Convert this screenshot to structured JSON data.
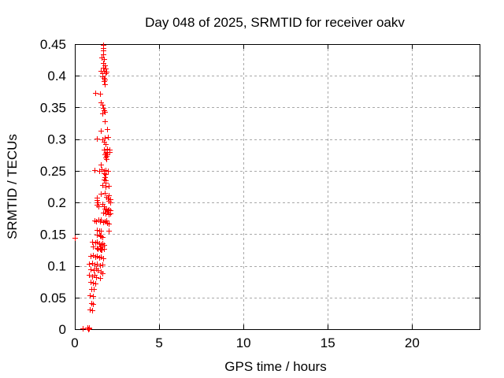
{
  "window": {
    "background": "#ffffff"
  },
  "colors": {
    "axis": "#000000",
    "grid": "#a8a8a8",
    "text": "#000000",
    "marker": "#ff0000"
  },
  "chart_data": {
    "type": "scatter",
    "title": "Day 048 of 2025, SRMTID for receiver oakv",
    "xlabel": "GPS time / hours",
    "ylabel": "SRMTID / TECUs",
    "xlim": [
      0,
      24
    ],
    "ylim": [
      0,
      0.45
    ],
    "xticks": {
      "values": [
        0,
        5,
        10,
        15,
        20
      ],
      "labels": [
        "0",
        "5",
        "10",
        "15",
        "20"
      ]
    },
    "yticks": {
      "values": [
        0,
        0.05,
        0.1,
        0.15,
        0.2,
        0.25,
        0.3,
        0.35,
        0.4,
        0.45
      ],
      "labels": [
        "0",
        "0.05",
        "0.1",
        "0.15",
        "0.2",
        "0.25",
        "0.3",
        "0.35",
        "0.4",
        "0.45"
      ]
    },
    "grid": "dashed",
    "legend_position": "none",
    "marker": {
      "shape": "plus",
      "color": "#ff0000",
      "size": 7
    },
    "series": [
      {
        "name": "SRMTID",
        "points": [
          [
            0.47,
            0.001
          ],
          [
            0.75,
            0.002
          ],
          [
            0.79,
            0.0
          ],
          [
            0.82,
            0.003
          ],
          [
            0.84,
            0.001
          ],
          [
            0.89,
            0.031
          ],
          [
            1.03,
            0.03
          ],
          [
            0.98,
            0.041
          ],
          [
            1.07,
            0.04
          ],
          [
            0.89,
            0.053
          ],
          [
            1.07,
            0.052
          ],
          [
            0.98,
            0.063
          ],
          [
            1.12,
            0.063
          ],
          [
            0.93,
            0.075
          ],
          [
            1.07,
            0.073
          ],
          [
            1.21,
            0.072
          ],
          [
            0.84,
            0.086
          ],
          [
            1.03,
            0.083
          ],
          [
            1.17,
            0.086
          ],
          [
            1.26,
            0.082
          ],
          [
            1.5,
            0.081
          ],
          [
            0.93,
            0.094
          ],
          [
            1.12,
            0.093
          ],
          [
            1.26,
            0.096
          ],
          [
            1.36,
            0.093
          ],
          [
            1.54,
            0.091
          ],
          [
            1.64,
            0.088
          ],
          [
            0.84,
            0.103
          ],
          [
            1.03,
            0.104
          ],
          [
            1.17,
            0.102
          ],
          [
            1.31,
            0.103
          ],
          [
            1.5,
            0.101
          ],
          [
            1.64,
            0.102
          ],
          [
            0.93,
            0.116
          ],
          [
            1.07,
            0.117
          ],
          [
            1.21,
            0.114
          ],
          [
            1.31,
            0.116
          ],
          [
            1.45,
            0.113
          ],
          [
            1.54,
            0.114
          ],
          [
            1.68,
            0.112
          ],
          [
            1.07,
            0.131
          ],
          [
            1.5,
            0.131
          ],
          [
            1.64,
            0.131
          ],
          [
            1.36,
            0.127
          ],
          [
            1.54,
            0.126
          ],
          [
            1.31,
            0.128
          ],
          [
            1.5,
            0.127
          ],
          [
            1.59,
            0.126
          ],
          [
            1.73,
            0.127
          ],
          [
            1.03,
            0.138
          ],
          [
            1.21,
            0.137
          ],
          [
            1.31,
            0.138
          ],
          [
            1.45,
            0.136
          ],
          [
            1.54,
            0.134
          ],
          [
            1.64,
            0.136
          ],
          [
            1.73,
            0.133
          ],
          [
            0.02,
            0.144
          ],
          [
            1.31,
            0.149
          ],
          [
            1.5,
            0.148
          ],
          [
            1.54,
            0.147
          ],
          [
            1.64,
            0.145
          ],
          [
            1.31,
            0.157
          ],
          [
            1.45,
            0.155
          ],
          [
            1.54,
            0.155
          ],
          [
            2.01,
            0.155
          ],
          [
            1.17,
            0.172
          ],
          [
            1.26,
            0.17
          ],
          [
            1.4,
            0.173
          ],
          [
            1.5,
            0.17
          ],
          [
            1.54,
            0.173
          ],
          [
            1.68,
            0.169
          ],
          [
            1.78,
            0.17
          ],
          [
            1.87,
            0.172
          ],
          [
            1.92,
            0.168
          ],
          [
            2.01,
            0.167
          ],
          [
            1.68,
            0.184
          ],
          [
            1.82,
            0.183
          ],
          [
            1.92,
            0.185
          ],
          [
            2.01,
            0.182
          ],
          [
            2.1,
            0.183
          ],
          [
            1.78,
            0.19
          ],
          [
            1.87,
            0.189
          ],
          [
            1.96,
            0.188
          ],
          [
            2.01,
            0.189
          ],
          [
            2.1,
            0.188
          ],
          [
            1.64,
            0.198
          ],
          [
            1.73,
            0.194
          ],
          [
            1.31,
            0.208
          ],
          [
            1.31,
            0.204
          ],
          [
            1.36,
            0.2
          ],
          [
            1.31,
            0.196
          ],
          [
            1.4,
            0.194
          ],
          [
            1.87,
            0.209
          ],
          [
            1.96,
            0.206
          ],
          [
            2.1,
            0.205
          ],
          [
            2.01,
            0.203
          ],
          [
            2.1,
            0.2
          ],
          [
            1.54,
            0.214
          ],
          [
            1.78,
            0.215
          ],
          [
            2.01,
            0.211
          ],
          [
            1.64,
            0.228
          ],
          [
            1.82,
            0.225
          ],
          [
            1.82,
            0.231
          ],
          [
            2.01,
            0.226
          ],
          [
            1.17,
            0.251
          ],
          [
            1.45,
            0.25
          ],
          [
            1.59,
            0.252
          ],
          [
            1.73,
            0.25
          ],
          [
            1.82,
            0.251
          ],
          [
            1.96,
            0.25
          ],
          [
            1.73,
            0.246
          ],
          [
            1.82,
            0.245
          ],
          [
            1.78,
            0.24
          ],
          [
            1.73,
            0.236
          ],
          [
            1.82,
            0.235
          ],
          [
            1.54,
            0.26
          ],
          [
            1.73,
            0.284
          ],
          [
            1.92,
            0.285
          ],
          [
            2.06,
            0.283
          ],
          [
            1.92,
            0.28
          ],
          [
            1.82,
            0.279
          ],
          [
            2.06,
            0.28
          ],
          [
            1.92,
            0.276
          ],
          [
            1.78,
            0.276
          ],
          [
            1.87,
            0.274
          ],
          [
            1.82,
            0.271
          ],
          [
            1.87,
            0.269
          ],
          [
            1.73,
            0.296
          ],
          [
            1.82,
            0.292
          ],
          [
            1.31,
            0.301
          ],
          [
            1.64,
            0.3
          ],
          [
            1.78,
            0.302
          ],
          [
            1.96,
            0.303
          ],
          [
            1.54,
            0.313
          ],
          [
            1.92,
            0.316
          ],
          [
            1.78,
            0.328
          ],
          [
            1.54,
            0.358
          ],
          [
            1.64,
            0.354
          ],
          [
            1.68,
            0.349
          ],
          [
            1.73,
            0.346
          ],
          [
            1.78,
            0.343
          ],
          [
            1.64,
            0.34
          ],
          [
            1.21,
            0.373
          ],
          [
            1.5,
            0.372
          ],
          [
            1.68,
            0.413
          ],
          [
            1.82,
            0.411
          ],
          [
            1.54,
            0.408
          ],
          [
            1.73,
            0.408
          ],
          [
            1.87,
            0.407
          ],
          [
            1.64,
            0.404
          ],
          [
            1.82,
            0.404
          ],
          [
            1.64,
            0.399
          ],
          [
            1.73,
            0.397
          ],
          [
            1.78,
            0.394
          ],
          [
            1.73,
            0.392
          ],
          [
            1.78,
            0.387
          ],
          [
            1.68,
            0.42
          ],
          [
            1.78,
            0.417
          ],
          [
            1.59,
            0.429
          ],
          [
            1.73,
            0.427
          ],
          [
            1.7,
            0.449
          ],
          [
            1.7,
            0.444
          ],
          [
            1.68,
            0.44
          ],
          [
            1.7,
            0.434
          ]
        ]
      }
    ]
  }
}
